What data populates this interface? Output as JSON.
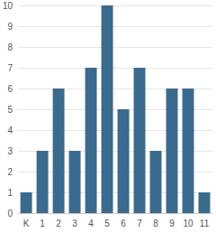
{
  "chart_data": {
    "type": "bar",
    "categories": [
      "K",
      "1",
      "2",
      "3",
      "4",
      "5",
      "6",
      "7",
      "8",
      "9",
      "10",
      "11"
    ],
    "values": [
      1,
      3,
      6,
      3,
      7,
      10,
      5,
      7,
      3,
      6,
      6,
      1
    ],
    "color": "#3b6a8f",
    "ylim": [
      0,
      10
    ],
    "yticks": [
      0,
      1,
      2,
      3,
      4,
      5,
      6,
      7,
      8,
      9,
      10
    ],
    "grid": true
  }
}
